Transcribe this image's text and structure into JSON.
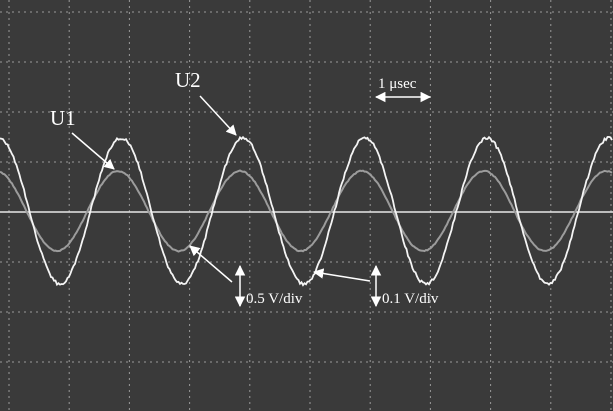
{
  "labels": {
    "u1": "U1",
    "u2": "U2",
    "time_scale": "1 μsec",
    "u2_scale": "0.5 V/div",
    "u1_scale": "0.1 V/div"
  }
}
